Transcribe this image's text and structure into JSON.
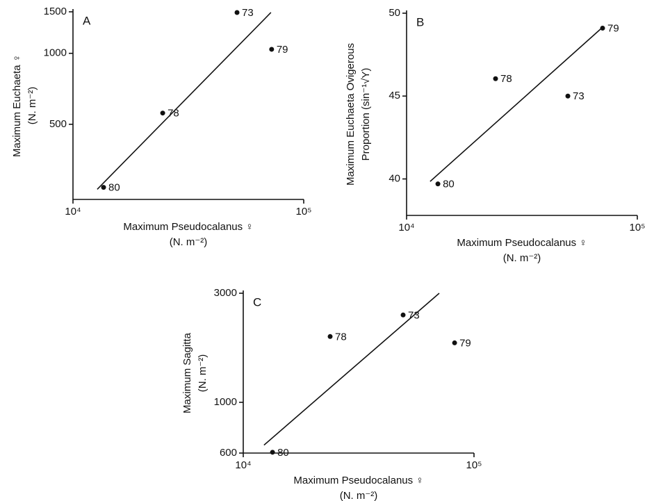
{
  "chart_data": [
    {
      "type": "scatter",
      "panel": "A",
      "xlabel": "Maximum Pseudocalanus ♀",
      "xlabel_unit": "(N. m⁻²)",
      "ylabel": "Maximum Euchaeta ♀",
      "ylabel_unit": "(N. m⁻²)",
      "xscale": "log",
      "yscale": "log",
      "xlim": [
        10000,
        100000
      ],
      "xticks": [
        {
          "value": 10000,
          "label": "10⁴"
        },
        {
          "value": 100000,
          "label": "10⁵"
        }
      ],
      "ylim": [
        240,
        1500
      ],
      "yticks": [
        500,
        1000,
        1500
      ],
      "categories": [
        "80",
        "78",
        "73",
        "79"
      ],
      "x": [
        13570,
        24480,
        51400,
        72600
      ],
      "values": [
        270,
        558,
        1490,
        1040
      ],
      "color": "#111111",
      "fit": {
        "x": [
          12740,
          72100
        ],
        "values": [
          265,
          1490
        ]
      }
    },
    {
      "type": "scatter",
      "panel": "B",
      "xlabel": "Maximum Pseudocalanus ♀",
      "xlabel_unit": "(N. m⁻²)",
      "ylabel": "Maximum Euchaeta Ovigerous",
      "ylabel_unit": "Proportion (sin⁻¹√Y)",
      "xscale": "log",
      "yscale": "linear",
      "xlim": [
        10000,
        100000
      ],
      "xticks": [
        {
          "value": 10000,
          "label": "10⁴"
        },
        {
          "value": 100000,
          "label": "10⁵"
        }
      ],
      "ylim": [
        37.8,
        50
      ],
      "yticks": [
        40,
        45,
        50
      ],
      "categories": [
        "80",
        "78",
        "73",
        "79"
      ],
      "x": [
        13670,
        24300,
        50000,
        70700
      ],
      "values": [
        39.7,
        46.05,
        45,
        49.1
      ],
      "color": "#111111",
      "fit": {
        "x": [
          12650,
          70700
        ],
        "values": [
          39.85,
          49.15
        ]
      }
    },
    {
      "type": "scatter",
      "panel": "C",
      "xlabel": "Maximum Pseudocalanus ♀",
      "xlabel_unit": "(N. m⁻²)",
      "ylabel": "Maximum Sagitta",
      "ylabel_unit": "(N. m⁻²)",
      "xscale": "log",
      "yscale": "log",
      "xlim": [
        10000,
        100000
      ],
      "xticks": [
        {
          "value": 10000,
          "label": "10⁴"
        },
        {
          "value": 100000,
          "label": "10⁵"
        }
      ],
      "ylim": [
        600,
        3000
      ],
      "yticks": [
        600,
        1000,
        3000
      ],
      "categories": [
        "80",
        "78",
        "73",
        "79"
      ],
      "x": [
        13390,
        23800,
        49300,
        82400
      ],
      "values": [
        605,
        1940,
        2410,
        1820
      ],
      "color": "#111111",
      "fit": {
        "x": [
          12300,
          70700
        ],
        "values": [
          650,
          3000
        ]
      }
    }
  ]
}
